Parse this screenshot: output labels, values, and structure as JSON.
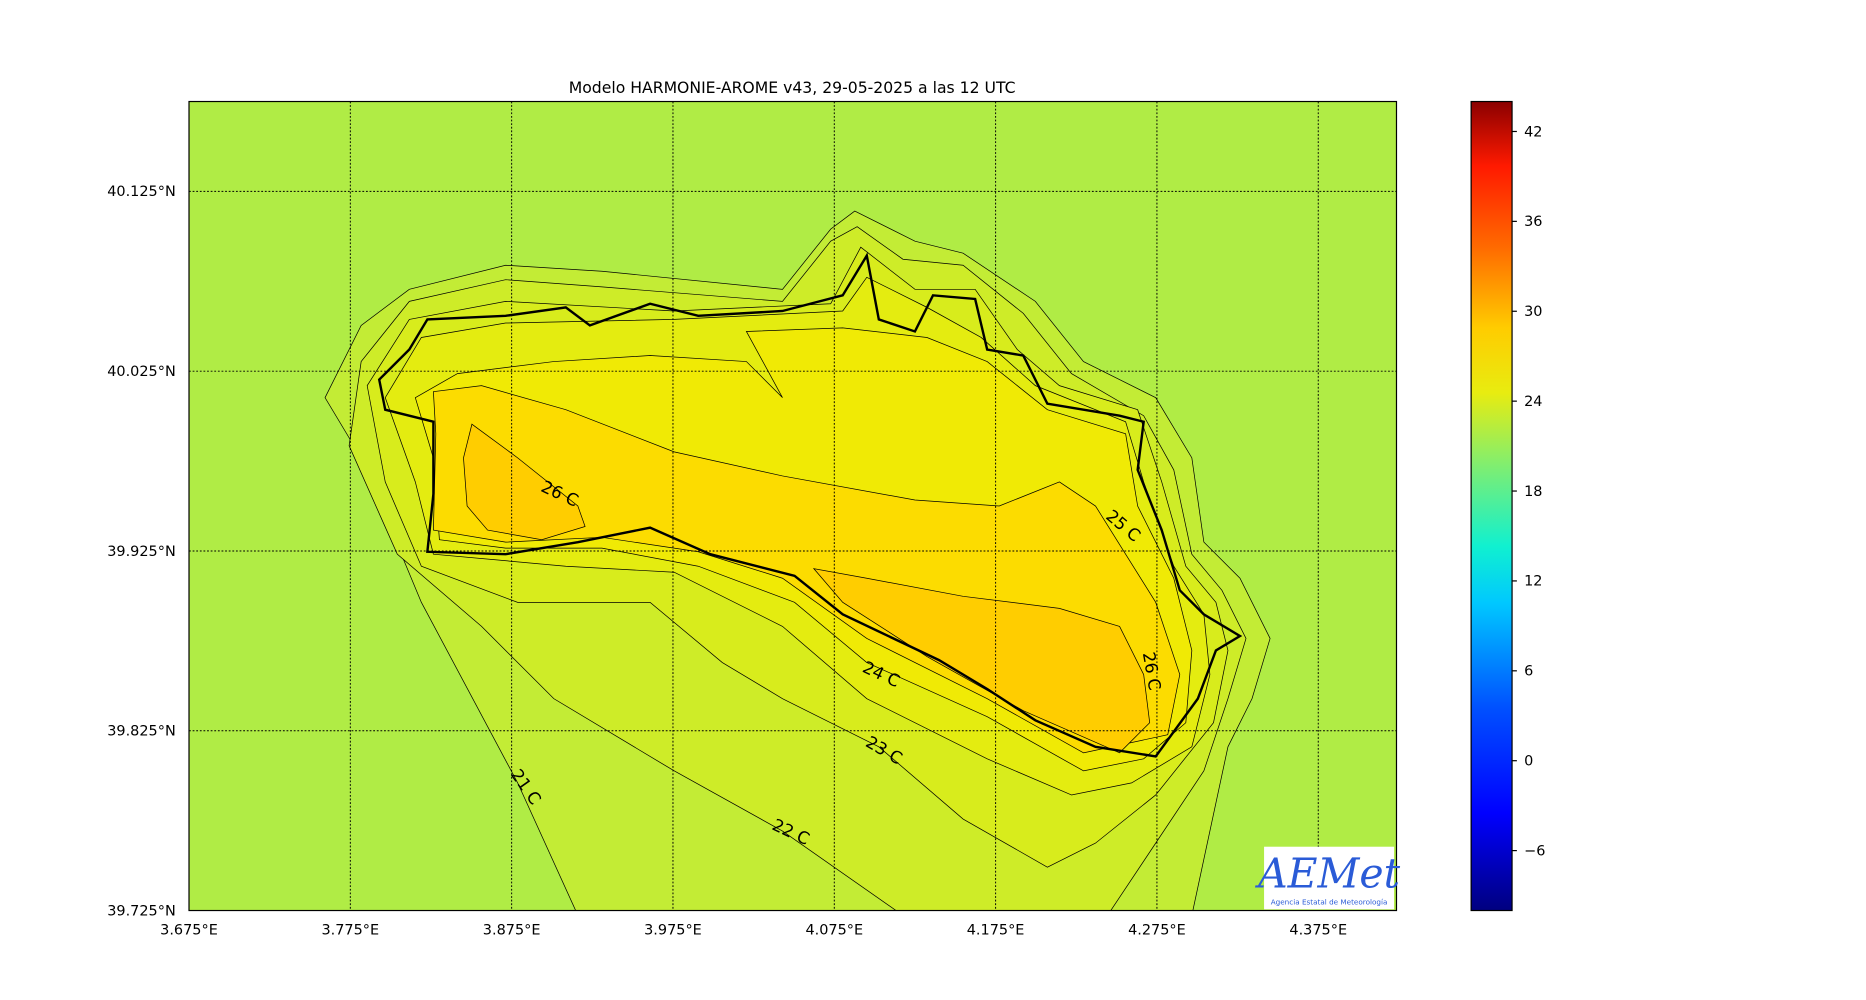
{
  "title": "Modelo HARMONIE-AROME v43, 29-05-2025 a las 12 UTC",
  "map": {
    "xlim": [
      3.675,
      4.4235
    ],
    "ylim": [
      39.725,
      40.175
    ],
    "grid": true,
    "xticks": [
      {
        "value": 3.675,
        "label": "3.675°E"
      },
      {
        "value": 3.775,
        "label": "3.775°E"
      },
      {
        "value": 3.875,
        "label": "3.875°E"
      },
      {
        "value": 3.975,
        "label": "3.975°E"
      },
      {
        "value": 4.075,
        "label": "4.075°E"
      },
      {
        "value": 4.175,
        "label": "4.175°E"
      },
      {
        "value": 4.275,
        "label": "4.275°E"
      },
      {
        "value": 4.375,
        "label": "4.375°E"
      }
    ],
    "yticks": [
      {
        "value": 39.725,
        "label": "39.725°N"
      },
      {
        "value": 39.825,
        "label": "39.825°N"
      },
      {
        "value": 39.925,
        "label": "39.925°N"
      },
      {
        "value": 40.025,
        "label": "40.025°N"
      },
      {
        "value": 40.125,
        "label": "40.125°N"
      }
    ]
  },
  "colorbar": {
    "lim": [
      -10,
      44
    ],
    "ticks": [
      {
        "value": -6,
        "label": "−6"
      },
      0,
      6,
      12,
      18,
      24,
      30,
      36,
      42
    ]
  },
  "contour_labels": [
    "26 C",
    "25 C",
    "26 C",
    "24 C",
    "23 C",
    "22 C",
    "21 C"
  ],
  "logo": {
    "name": "AEMet",
    "subtitle": "Agencia Estatal de Meteorología"
  }
}
